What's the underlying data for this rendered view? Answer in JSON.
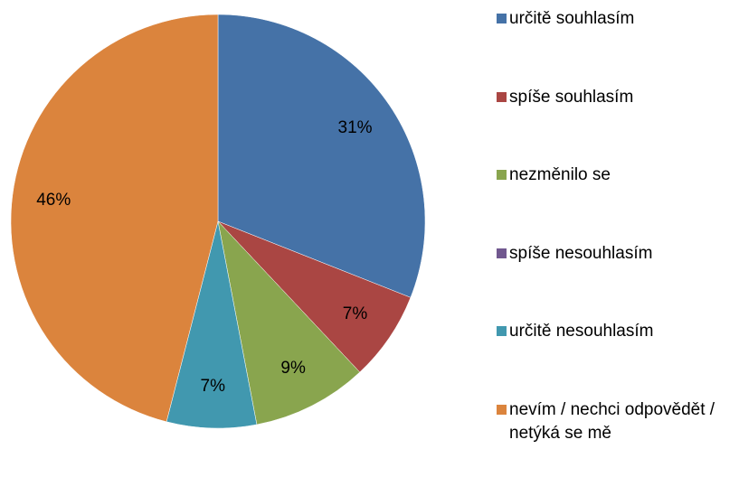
{
  "chart_data": {
    "type": "pie",
    "categories": [
      "určitě souhlasím",
      "spíše souhlasím",
      "nezměnilo se",
      "spíše nesouhlasím",
      "určitě nesouhlasím",
      "nevím / nechci odpovědět / netýká se mě"
    ],
    "values": [
      31,
      7,
      9,
      0,
      7,
      46
    ],
    "value_labels": [
      "31%",
      "7%",
      "9%",
      null,
      "7%",
      "46%"
    ],
    "colors": [
      "#4572a7",
      "#aa4643",
      "#89a54e",
      "#71588f",
      "#4198af",
      "#db843d"
    ],
    "legend": "right"
  }
}
